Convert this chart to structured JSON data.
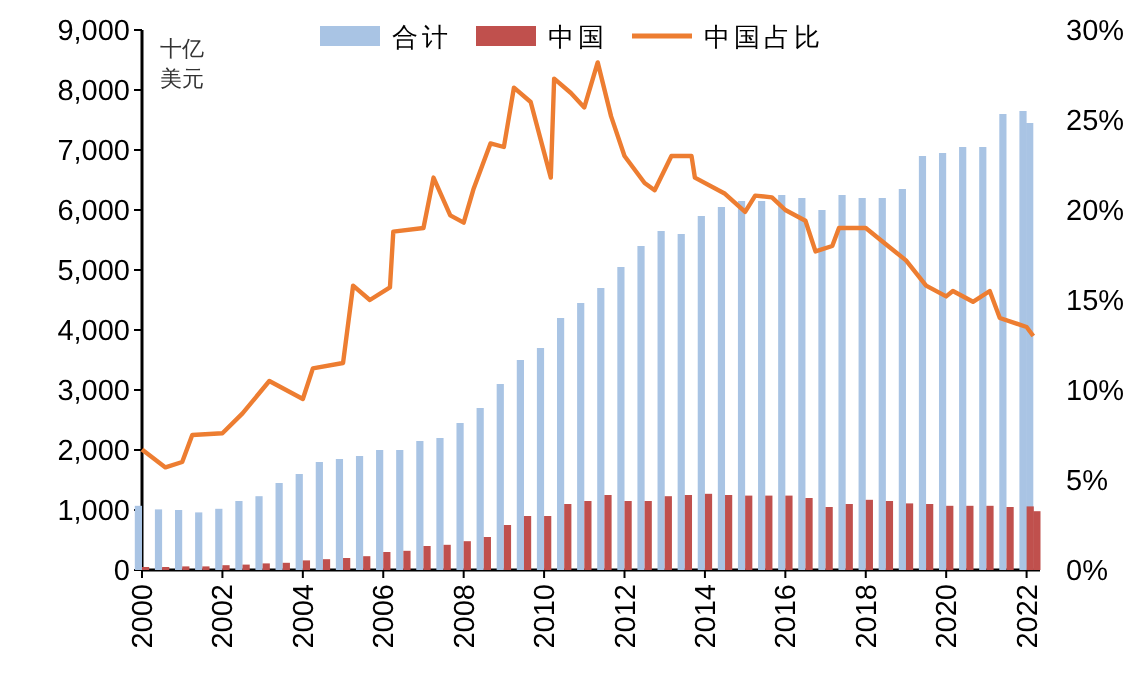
{
  "chart_data": {
    "type": "bar",
    "ylabel": "十亿美元",
    "legend": "top",
    "grid": false,
    "marker": "none",
    "xlim": [
      "2000",
      "2022-05"
    ],
    "xticks": [
      "2000",
      "2002",
      "2004",
      "2006",
      "2008",
      "2010",
      "2012",
      "2014",
      "2016",
      "2018",
      "2020",
      "2022"
    ],
    "ylim": [
      0,
      9000
    ],
    "yticks": [
      0,
      {
        "value": 1000,
        "label": "1,000"
      },
      {
        "value": 2000,
        "label": "2,000"
      },
      {
        "value": 3000,
        "label": "3,000"
      },
      {
        "value": 4000,
        "label": "4,000"
      },
      {
        "value": 5000,
        "label": "5,000"
      },
      {
        "value": 6000,
        "label": "6,000"
      },
      {
        "value": 7000,
        "label": "7,000"
      },
      {
        "value": 8000,
        "label": "8,000"
      },
      {
        "value": 9000,
        "label": "9,000"
      }
    ],
    "y2lim": [
      0,
      30
    ],
    "y2ticks": [
      {
        "value": 0,
        "label": "0%"
      },
      {
        "value": 5,
        "label": "5%"
      },
      {
        "value": 10,
        "label": "10%"
      },
      {
        "value": 15,
        "label": "15%"
      },
      {
        "value": 20,
        "label": "20%"
      },
      {
        "value": 25,
        "label": "25%"
      },
      {
        "value": 30,
        "label": "30%"
      }
    ],
    "x": [
      "2000-01",
      "2000-07",
      "2001-01",
      "2001-07",
      "2002-01",
      "2002-07",
      "2003-01",
      "2003-07",
      "2004-01",
      "2004-07",
      "2005-01",
      "2005-07",
      "2006-01",
      "2006-07",
      "2007-01",
      "2007-07",
      "2008-01",
      "2008-07",
      "2009-01",
      "2009-07",
      "2010-01",
      "2010-07",
      "2011-01",
      "2011-07",
      "2012-01",
      "2012-07",
      "2013-01",
      "2013-07",
      "2014-01",
      "2014-07",
      "2015-01",
      "2015-07",
      "2016-01",
      "2016-07",
      "2017-01",
      "2017-07",
      "2018-01",
      "2018-07",
      "2019-01",
      "2019-07",
      "2020-01",
      "2020-07",
      "2021-01",
      "2021-07",
      "2022-01",
      "2022-03"
    ],
    "series": [
      {
        "name": "合计",
        "color": "#a9c4e4",
        "values": [
          1070,
          1010,
          1000,
          960,
          1020,
          1150,
          1230,
          1450,
          1600,
          1800,
          1850,
          1900,
          2000,
          2000,
          2150,
          2200,
          2450,
          2700,
          3100,
          3500,
          3700,
          4200,
          4450,
          4700,
          5050,
          5400,
          5650,
          5600,
          5900,
          6050,
          6150,
          6150,
          6250,
          6200,
          6000,
          6250,
          6200,
          6200,
          6350,
          6900,
          6950,
          7050,
          7050,
          7600,
          7650,
          7450
        ]
      },
      {
        "name": "中国",
        "color": "#c0504d",
        "values": [
          50,
          50,
          60,
          60,
          80,
          90,
          110,
          120,
          160,
          180,
          200,
          230,
          300,
          320,
          400,
          420,
          480,
          550,
          750,
          900,
          900,
          1100,
          1150,
          1250,
          1150,
          1150,
          1230,
          1250,
          1270,
          1250,
          1240,
          1240,
          1240,
          1200,
          1050,
          1100,
          1170,
          1150,
          1110,
          1100,
          1070,
          1070,
          1070,
          1050,
          1060,
          980
        ]
      },
      {
        "name": "中国占比",
        "type": "line",
        "axis": "y2",
        "color": "#ed7d31",
        "x": [
          "2000-01",
          "2000-08",
          "2001-01",
          "2001-04",
          "2002-01",
          "2002-07",
          "2003-03",
          "2004-01",
          "2004-04",
          "2005-01",
          "2005-04",
          "2005-09",
          "2006-03",
          "2006-04",
          "2007-01",
          "2007-04",
          "2007-09",
          "2008-01",
          "2008-04",
          "2008-09",
          "2009-01",
          "2009-04",
          "2009-09",
          "2010-01",
          "2010-03",
          "2010-04",
          "2010-09",
          "2011-01",
          "2011-05",
          "2011-09",
          "2012-01",
          "2012-07",
          "2012-10",
          "2013-03",
          "2013-09",
          "2013-10",
          "2014-07",
          "2015-01",
          "2015-04",
          "2015-09",
          "2016-01",
          "2016-07",
          "2016-10",
          "2017-03",
          "2017-05",
          "2018-01",
          "2018-07",
          "2019-01",
          "2019-07",
          "2020-01",
          "2020-03",
          "2020-09",
          "2021-02",
          "2021-05",
          "2022-01",
          "2022-03"
        ],
        "values": [
          6.7,
          5.7,
          6.0,
          7.5,
          7.6,
          8.7,
          10.5,
          9.5,
          11.2,
          11.5,
          15.8,
          15.0,
          15.7,
          18.8,
          19.0,
          21.8,
          19.7,
          19.3,
          21.2,
          23.7,
          23.5,
          26.8,
          26.0,
          23.2,
          21.8,
          27.3,
          26.5,
          25.7,
          28.2,
          25.2,
          23.0,
          21.5,
          21.1,
          23.0,
          23.0,
          21.8,
          20.9,
          19.9,
          20.8,
          20.7,
          20.0,
          19.4,
          17.7,
          18.0,
          19.0,
          19.0,
          18.1,
          17.2,
          15.8,
          15.2,
          15.5,
          14.9,
          15.5,
          14.0,
          13.5,
          13.0
        ]
      }
    ]
  }
}
